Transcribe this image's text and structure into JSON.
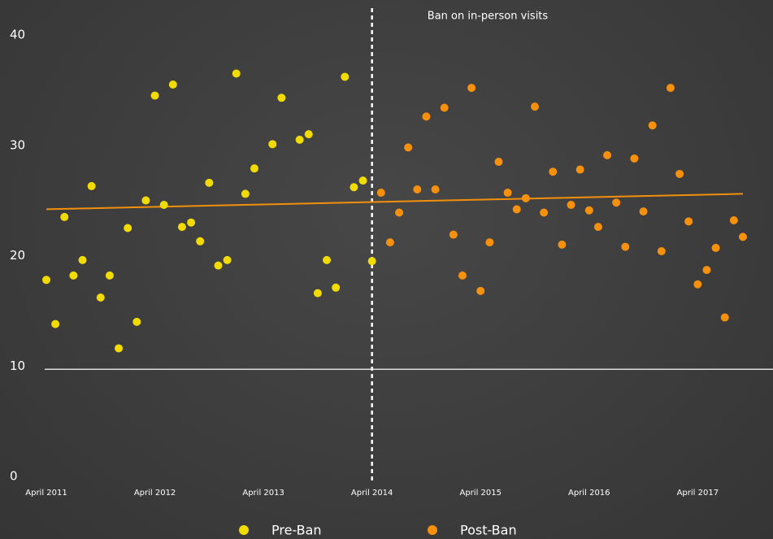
{
  "chart_data": {
    "type": "scatter",
    "annotation": "Ban on in-person visits",
    "ban_x": "2014-04",
    "ylim": [
      0,
      40
    ],
    "yticks": [
      0,
      10,
      20,
      30,
      40
    ],
    "hline": 10,
    "xlim": [
      "2011-04",
      "2017-09"
    ],
    "xticks": [
      {
        "value": "2011-04",
        "label": "April 2011"
      },
      {
        "value": "2012-04",
        "label": "April 2012"
      },
      {
        "value": "2013-04",
        "label": "April 2013"
      },
      {
        "value": "2014-04",
        "label": "April 2014"
      },
      {
        "value": "2015-04",
        "label": "April 2015"
      },
      {
        "value": "2016-04",
        "label": "April 2016"
      },
      {
        "value": "2017-04",
        "label": "April 2017"
      }
    ],
    "legend": "bottom",
    "series": [
      {
        "name": "Pre-Ban",
        "color": "#f2dc00",
        "x": [
          "2011-04",
          "2011-05",
          "2011-06",
          "2011-07",
          "2011-08",
          "2011-09",
          "2011-10",
          "2011-11",
          "2011-12",
          "2012-01",
          "2012-02",
          "2012-03",
          "2012-04",
          "2012-05",
          "2012-06",
          "2012-07",
          "2012-08",
          "2012-09",
          "2012-10",
          "2012-11",
          "2012-12",
          "2013-01",
          "2013-02",
          "2013-03",
          "2013-05",
          "2013-06",
          "2013-08",
          "2013-09",
          "2013-10",
          "2013-11",
          "2013-12",
          "2014-01",
          "2014-02",
          "2014-03",
          "2014-04"
        ],
        "values": [
          18.1,
          14.1,
          23.8,
          18.5,
          19.9,
          26.6,
          16.5,
          18.5,
          11.9,
          22.8,
          14.3,
          25.3,
          34.8,
          24.9,
          35.8,
          22.9,
          23.3,
          21.6,
          26.9,
          19.4,
          19.9,
          36.8,
          25.9,
          28.2,
          30.4,
          34.6,
          30.8,
          31.3,
          16.9,
          19.9,
          17.4,
          36.5,
          26.5,
          27.1,
          19.8
        ]
      },
      {
        "name": "Post-Ban",
        "color": "#f7900c",
        "x": [
          "2014-05",
          "2014-06",
          "2014-07",
          "2014-08",
          "2014-09",
          "2014-10",
          "2014-11",
          "2014-12",
          "2015-01",
          "2015-02",
          "2015-03",
          "2015-04",
          "2015-05",
          "2015-06",
          "2015-07",
          "2015-08",
          "2015-09",
          "2015-10",
          "2015-11",
          "2015-12",
          "2016-01",
          "2016-02",
          "2016-03",
          "2016-04",
          "2016-05",
          "2016-06",
          "2016-07",
          "2016-08",
          "2016-09",
          "2016-10",
          "2016-11",
          "2016-12",
          "2017-01",
          "2017-02",
          "2017-03",
          "2017-04",
          "2017-05",
          "2017-06",
          "2017-07",
          "2017-08",
          "2017-09"
        ],
        "values": [
          26.0,
          21.5,
          24.2,
          30.1,
          26.3,
          32.9,
          26.3,
          33.7,
          22.2,
          18.5,
          35.5,
          17.1,
          21.5,
          28.8,
          26.0,
          24.5,
          25.5,
          33.8,
          24.2,
          27.9,
          21.3,
          24.9,
          28.1,
          24.4,
          22.9,
          29.4,
          25.1,
          21.1,
          29.1,
          24.3,
          32.1,
          20.7,
          35.5,
          27.7,
          23.4,
          17.7,
          19.0,
          21.0,
          14.7,
          23.5,
          22.0
        ]
      }
    ],
    "trend": {
      "color": "#f2900c",
      "x": [
        "2011-04",
        "2017-09"
      ],
      "values": [
        24.5,
        25.9
      ]
    }
  }
}
